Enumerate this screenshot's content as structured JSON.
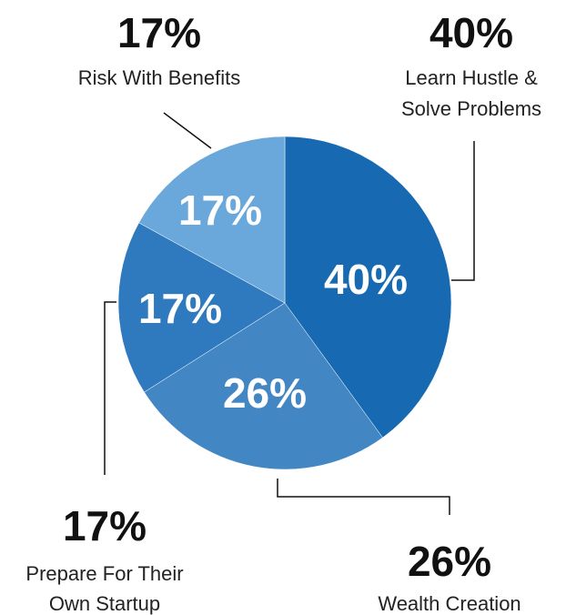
{
  "chart_data": {
    "type": "pie",
    "title": "",
    "slices": [
      {
        "label": "Learn Hustle & Solve Problems",
        "lines": [
          "Learn Hustle &",
          "Solve Problems"
        ],
        "value": 40,
        "percent_label": "40%",
        "color": "#1769b1"
      },
      {
        "label": "Wealth Creation",
        "lines": [
          "Wealth Creation"
        ],
        "value": 26,
        "percent_label": "26%",
        "color": "#4286c4"
      },
      {
        "label": "Prepare For Their Own Startup",
        "lines": [
          "Prepare For Their",
          "Own Startup"
        ],
        "value": 17,
        "percent_label": "17%",
        "color": "#2f7abe"
      },
      {
        "label": "Risk With Benefits",
        "lines": [
          "Risk With Benefits"
        ],
        "value": 17,
        "percent_label": "17%",
        "color": "#6aa7da"
      }
    ],
    "start_angle": "12 o'clock",
    "direction": "clockwise",
    "legend": "none"
  }
}
